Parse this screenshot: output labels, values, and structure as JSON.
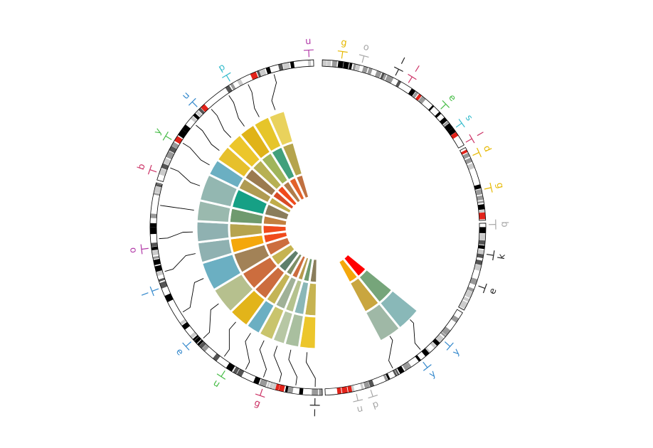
{
  "chart_data": {
    "type": "circos",
    "title": "",
    "ideogram": {
      "segments": [
        {
          "start": 1.5,
          "end": 60.5
        },
        {
          "start": 61.5,
          "end": 87.5
        },
        {
          "start": 88.5,
          "end": 119.5
        },
        {
          "start": 120.5,
          "end": 177.5
        },
        {
          "start": 178.5,
          "end": 285.5
        },
        {
          "start": 286.5,
          "end": 358.5
        }
      ],
      "highlight_color": "#e2231a",
      "band_colors": [
        "#000000",
        "#555555",
        "#999999",
        "#cccccc",
        "#ffffff"
      ]
    },
    "outer_labels": [
      {
        "text": "u",
        "angle": 357,
        "color": "#b23aa8"
      },
      {
        "text": "g",
        "angle": 8,
        "color": "#e6b800"
      },
      {
        "text": "o",
        "angle": 15,
        "color": "#a6a6a6"
      },
      {
        "text": "l",
        "angle": 27,
        "color": "#222222"
      },
      {
        "text": "l",
        "angle": 32,
        "color": "#cc3366"
      },
      {
        "text": "e",
        "angle": 46,
        "color": "#44bb44"
      },
      {
        "text": "s",
        "angle": 54,
        "color": "#33bbcc"
      },
      {
        "text": "l",
        "angle": 60,
        "color": "#cc3366"
      },
      {
        "text": "d",
        "angle": 65,
        "color": "#e6b800"
      },
      {
        "text": "g",
        "angle": 77,
        "color": "#e6b800"
      },
      {
        "text": "b",
        "angle": 89,
        "color": "#a6a6a6"
      },
      {
        "text": "k",
        "angle": 99,
        "color": "#222222"
      },
      {
        "text": "e",
        "angle": 110,
        "color": "#222222"
      },
      {
        "text": "y",
        "angle": 132,
        "color": "#3388cc"
      },
      {
        "text": "y",
        "angle": 142,
        "color": "#3388cc"
      },
      {
        "text": "p",
        "angle": 162,
        "color": "#a6a6a6"
      },
      {
        "text": "u",
        "angle": 167,
        "color": "#a6a6a6"
      },
      {
        "text": "l",
        "angle": 181,
        "color": "#222222"
      },
      {
        "text": "g",
        "angle": 199,
        "color": "#cc3366"
      },
      {
        "text": "u",
        "angle": 213,
        "color": "#44bb44"
      },
      {
        "text": "e",
        "angle": 228,
        "color": "#3388cc"
      },
      {
        "text": "l",
        "angle": 249,
        "color": "#3388cc"
      },
      {
        "text": "o",
        "angle": 263,
        "color": "#b23aa8"
      },
      {
        "text": "b",
        "angle": 289,
        "color": "#cc3366"
      },
      {
        "text": "y",
        "angle": 301,
        "color": "#44bb44"
      },
      {
        "text": "u",
        "angle": 315,
        "color": "#3388cc"
      },
      {
        "text": "p",
        "angle": 329,
        "color": "#33bbcc"
      }
    ],
    "heatmap": {
      "radii": [
        44,
        78,
        125,
        171
      ],
      "left_columns": [
        {
          "start": 181,
          "end": 189,
          "colors": [
            "#8a7d5b",
            "#c6b351",
            "#ecc62b"
          ]
        },
        {
          "start": 189,
          "end": 196,
          "colors": [
            "#6f9a6e",
            "#8ab7b7",
            "#a9bf9f"
          ]
        },
        {
          "start": 196,
          "end": 202,
          "colors": [
            "#b69a4c",
            "#b5c28e",
            "#b7c7a4"
          ]
        },
        {
          "start": 202,
          "end": 209,
          "colors": [
            "#cc6d3e",
            "#a0b197",
            "#c9c46c"
          ]
        },
        {
          "start": 209,
          "end": 216,
          "colors": [
            "#7e8f66",
            "#c4b455",
            "#6bafc2"
          ]
        },
        {
          "start": 216,
          "end": 226,
          "colors": [
            "#5f7f6b",
            "#cc6d3e",
            "#e2b41a"
          ]
        },
        {
          "start": 226,
          "end": 239,
          "colors": [
            "#c6b351",
            "#cc6d3e",
            "#b6c08e"
          ]
        },
        {
          "start": 239,
          "end": 253,
          "colors": [
            "#cc6d3e",
            "#a28257",
            "#6bafc2"
          ]
        },
        {
          "start": 253,
          "end": 263,
          "colors": [
            "#f04a1c",
            "#f4a70c",
            "#8fb1b1"
          ]
        },
        {
          "start": 263,
          "end": 273,
          "colors": [
            "#f04a1c",
            "#b6a44e",
            "#8fb1b1"
          ]
        },
        {
          "start": 273,
          "end": 283,
          "colors": [
            "#c2803f",
            "#6f9a6e",
            "#9ab9ae"
          ]
        },
        {
          "start": 283,
          "end": 296,
          "colors": [
            "#8a7d5b",
            "#16a085",
            "#93b7b1"
          ]
        },
        {
          "start": 296,
          "end": 304,
          "colors": [
            "#c0ac49",
            "#b09b52",
            "#6bafc2"
          ]
        },
        {
          "start": 304,
          "end": 312,
          "colors": [
            "#d84b25",
            "#9b7a4f",
            "#e6c02c"
          ]
        },
        {
          "start": 312,
          "end": 320,
          "colors": [
            "#f04a1c",
            "#b7b053",
            "#ecc62b"
          ]
        },
        {
          "start": 320,
          "end": 328,
          "colors": [
            "#b07c4a",
            "#a0b55a",
            "#e0b318"
          ]
        },
        {
          "start": 328,
          "end": 336,
          "colors": [
            "#e2622a",
            "#41a07c",
            "#e6c52a"
          ]
        },
        {
          "start": 336,
          "end": 344,
          "colors": [
            "#c07040",
            "#b5a44c",
            "#e9d25c"
          ]
        }
      ],
      "right_columns": [
        {
          "start": 129,
          "end": 141,
          "colors": [
            "#ff0000",
            "#76a57a",
            "#89b8b8"
          ]
        },
        {
          "start": 141,
          "end": 152,
          "colors": [
            "#f4a70c",
            "#c9a63f",
            "#9fb8a6"
          ]
        }
      ]
    },
    "connectors": {
      "inner_angles": [
        185,
        192.5,
        199,
        205.5,
        212.5,
        221,
        232.5,
        246,
        258,
        268,
        278,
        289.5,
        300,
        308,
        316,
        324,
        332,
        340,
        135,
        146.5
      ],
      "outer_angles": [
        181,
        188,
        194,
        200,
        207,
        216,
        226,
        238,
        254,
        266,
        278,
        292,
        302,
        310,
        318,
        326,
        334,
        344,
        140,
        152
      ]
    }
  }
}
